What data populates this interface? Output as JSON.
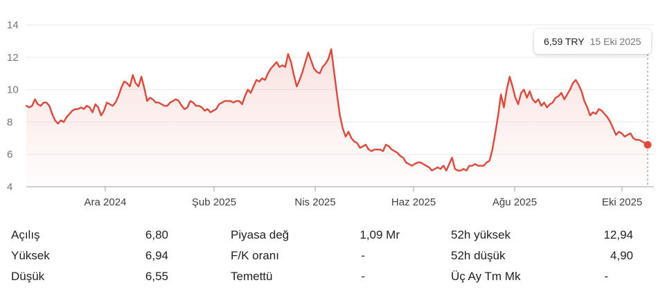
{
  "chart_data": {
    "type": "area",
    "currency": "TRY",
    "y_ticks": [
      "14",
      "12",
      "10",
      "8",
      "6",
      "4"
    ],
    "ylim": [
      4,
      14
    ],
    "x_ticks": [
      "Ara 2024",
      "Şub 2025",
      "Nis 2025",
      "Haz 2025",
      "Ağu 2025",
      "Eki 2025"
    ],
    "grid": "horizontal",
    "colors": {
      "line": "#db4c3f",
      "fill": "#fbe8e6",
      "grid": "#e8eaed",
      "axis": "#9aa0a6"
    },
    "series": [
      {
        "values": [
          9.0,
          8.9,
          9.0,
          9.4,
          9.1,
          9.0,
          9.2,
          9.2,
          9.0,
          8.5,
          8.1,
          7.9,
          8.1,
          8.0,
          8.3,
          8.5,
          8.7,
          8.8,
          8.8,
          8.9,
          8.8,
          9.0,
          8.9,
          8.6,
          9.1,
          8.9,
          8.4,
          8.7,
          9.2,
          9.1,
          9.0,
          9.2,
          9.6,
          10.1,
          10.5,
          10.4,
          10.2,
          10.9,
          10.4,
          10.2,
          10.8,
          10.1,
          9.3,
          9.5,
          9.4,
          9.2,
          9.2,
          9.1,
          9.0,
          9.0,
          9.2,
          9.3,
          9.4,
          9.3,
          9.0,
          8.8,
          8.9,
          9.3,
          9.2,
          9.0,
          9.0,
          8.9,
          8.7,
          8.8,
          8.6,
          8.7,
          8.8,
          9.1,
          9.2,
          9.3,
          9.3,
          9.3,
          9.2,
          9.3,
          9.3,
          9.1,
          9.6,
          10.0,
          9.8,
          10.2,
          10.6,
          10.5,
          10.7,
          10.6,
          11.0,
          11.3,
          11.5,
          11.7,
          11.4,
          11.5,
          11.4,
          12.2,
          11.7,
          10.9,
          10.2,
          10.6,
          11.1,
          11.7,
          12.3,
          11.8,
          11.3,
          11.1,
          11.0,
          11.4,
          11.6,
          11.9,
          12.5,
          11.1,
          9.7,
          8.4,
          7.6,
          7.1,
          7.4,
          7.0,
          6.8,
          6.7,
          6.4,
          6.5,
          6.6,
          6.3,
          6.2,
          6.3,
          6.3,
          6.3,
          6.2,
          6.6,
          6.5,
          6.3,
          6.2,
          6.1,
          5.9,
          5.8,
          5.5,
          5.4,
          5.3,
          5.4,
          5.5,
          5.5,
          5.4,
          5.3,
          5.2,
          5.0,
          5.1,
          5.2,
          5.1,
          5.3,
          5.0,
          5.4,
          5.8,
          5.1,
          5.0,
          5.0,
          5.1,
          5.0,
          5.3,
          5.3,
          5.4,
          5.3,
          5.3,
          5.3,
          5.5,
          5.6,
          6.3,
          7.3,
          8.4,
          9.7,
          8.9,
          10.0,
          10.8,
          10.2,
          9.5,
          9.1,
          9.8,
          10.0,
          9.5,
          9.9,
          9.4,
          9.2,
          9.4,
          9.0,
          9.2,
          8.9,
          9.1,
          9.2,
          9.5,
          9.6,
          9.8,
          9.4,
          9.7,
          10.0,
          10.4,
          10.6,
          10.3,
          9.9,
          9.3,
          8.9,
          8.4,
          8.6,
          8.5,
          8.8,
          8.7,
          8.5,
          8.3,
          8.0,
          7.6,
          7.2,
          7.4,
          7.3,
          7.1,
          7.2,
          7.3,
          7.0,
          6.9,
          6.9,
          6.8,
          6.7,
          6.59
        ]
      }
    ]
  },
  "tooltip": {
    "price": "6,59 TRY",
    "date": "15 Eki 2025"
  },
  "stats": [
    [
      {
        "label": "Açılış",
        "value": "6,80"
      },
      {
        "label": "Piyasa değ",
        "value": "1,09 Mr"
      },
      {
        "label": "52h yüksek",
        "value": "12,94"
      }
    ],
    [
      {
        "label": "Yüksek",
        "value": "6,94"
      },
      {
        "label": "F/K oranı",
        "value": "-"
      },
      {
        "label": "52h düşük",
        "value": "4,90"
      }
    ],
    [
      {
        "label": "Düşük",
        "value": "6,55"
      },
      {
        "label": "Temettü",
        "value": "-"
      },
      {
        "label": "Üç Ay Tm Mk",
        "value": "-"
      }
    ]
  ]
}
